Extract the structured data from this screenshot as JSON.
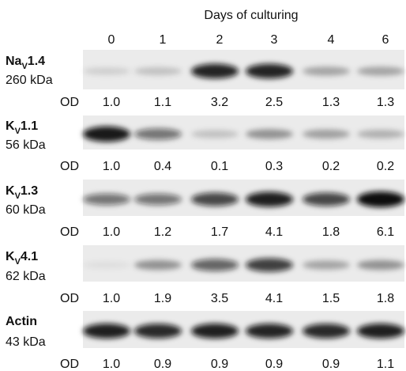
{
  "figure": {
    "title": "Days of culturing",
    "days": [
      "0",
      "1",
      "2",
      "3",
      "4",
      "6"
    ],
    "od_label": "OD",
    "panels": [
      {
        "name": {
          "base": "Na",
          "sub": "V",
          "rest": "1.4"
        },
        "size": "260 kDa",
        "od": [
          "1.0",
          "1.1",
          "3.2",
          "2.5",
          "1.3",
          "1.3"
        ]
      },
      {
        "name": {
          "base": "K",
          "sub": "V",
          "rest": "1.1"
        },
        "size": "56 kDa",
        "od": [
          "1.0",
          "0.4",
          "0.1",
          "0.3",
          "0.2",
          "0.2"
        ]
      },
      {
        "name": {
          "base": "K",
          "sub": "V",
          "rest": "1.3"
        },
        "size": "60 kDa",
        "od": [
          "1.0",
          "1.2",
          "1.7",
          "4.1",
          "1.8",
          "6.1"
        ]
      },
      {
        "name": {
          "base": "K",
          "sub": "V",
          "rest": "4.1"
        },
        "size": "62 kDa",
        "od": [
          "1.0",
          "1.9",
          "3.5",
          "4.1",
          "1.5",
          "1.8"
        ]
      },
      {
        "name": {
          "base": "Actin"
        },
        "size": "43 kDa",
        "od": [
          "1.0",
          "0.9",
          "0.9",
          "0.9",
          "0.9",
          "1.1"
        ]
      }
    ]
  }
}
